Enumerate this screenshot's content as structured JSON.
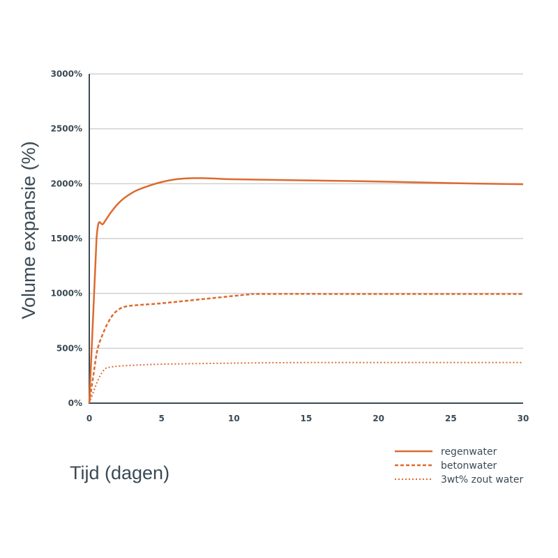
{
  "chart_data": {
    "type": "line",
    "title": "",
    "xlabel": "Tijd (dagen)",
    "ylabel": "Volume expansie (%)",
    "xlim": [
      0,
      30
    ],
    "ylim": [
      0,
      3000
    ],
    "x_ticks": [
      "0",
      "5",
      "10",
      "15",
      "20",
      "25",
      "30"
    ],
    "y_ticks": [
      "0%",
      "500%",
      "1000%",
      "1500%",
      "2000%",
      "2500%",
      "3000%"
    ],
    "grid": "horizontal",
    "legend_position": "bottom-right",
    "colors": {
      "line": "#dd6a2e",
      "axis": "#3b4a55",
      "grid": "#d0d0d0"
    },
    "series": [
      {
        "name": "regenwater",
        "style": "solid",
        "points": [
          [
            0,
            0
          ],
          [
            0.5,
            1500
          ],
          [
            1,
            1640
          ],
          [
            2,
            1820
          ],
          [
            3,
            1920
          ],
          [
            4,
            1975
          ],
          [
            5,
            2015
          ],
          [
            6,
            2040
          ],
          [
            7,
            2050
          ],
          [
            8,
            2050
          ],
          [
            9,
            2045
          ],
          [
            10,
            2040
          ],
          [
            15,
            2030
          ],
          [
            20,
            2020
          ],
          [
            25,
            2005
          ],
          [
            30,
            1995
          ]
        ]
      },
      {
        "name": "betonwater",
        "style": "dashed",
        "points": [
          [
            0,
            0
          ],
          [
            0.5,
            450
          ],
          [
            1,
            650
          ],
          [
            1.5,
            780
          ],
          [
            2,
            850
          ],
          [
            2.7,
            885
          ],
          [
            5,
            910
          ],
          [
            8,
            950
          ],
          [
            11,
            990
          ],
          [
            12,
            995
          ],
          [
            20,
            995
          ],
          [
            30,
            995
          ]
        ]
      },
      {
        "name": "3wt% zout water",
        "style": "dotted",
        "points": [
          [
            0,
            0
          ],
          [
            0.5,
            180
          ],
          [
            1,
            300
          ],
          [
            1.5,
            330
          ],
          [
            3,
            345
          ],
          [
            5,
            355
          ],
          [
            10,
            365
          ],
          [
            15,
            370
          ],
          [
            20,
            370
          ],
          [
            30,
            370
          ]
        ]
      }
    ]
  }
}
